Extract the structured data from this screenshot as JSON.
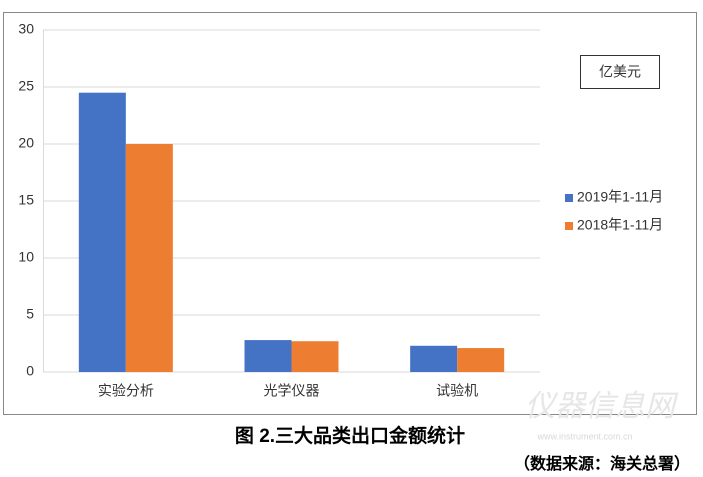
{
  "chart_data": {
    "type": "bar",
    "categories": [
      "实验分析",
      "光学仪器",
      "试验机"
    ],
    "series": [
      {
        "name": "2019年1-11月",
        "color": "#4472c4",
        "values": [
          24.5,
          2.8,
          2.3
        ]
      },
      {
        "name": "2018年1-11月",
        "color": "#ed7d31",
        "values": [
          20,
          2.7,
          2.1
        ]
      }
    ],
    "ylim": [
      0,
      30
    ],
    "yticks": [
      0,
      5,
      10,
      15,
      20,
      25,
      30
    ],
    "grid": true,
    "unit_label": "亿美元",
    "title": "图 2.三大品类出口金额统计",
    "source": "（数据来源：海关总署）",
    "watermark": "仪器信息网",
    "watermark_url": "www.instrument.com.cn"
  }
}
